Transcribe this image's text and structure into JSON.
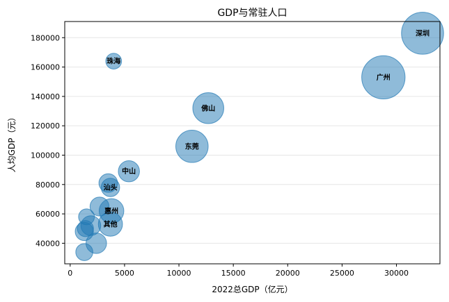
{
  "chart_data": {
    "type": "scatter",
    "title": "GDP与常驻人口",
    "xlabel": "2022总GDP（亿元）",
    "ylabel": "人均GDP（元）",
    "xlim": [
      -500,
      34000
    ],
    "ylim": [
      26000,
      191000
    ],
    "xticks": [
      0,
      5000,
      10000,
      15000,
      20000,
      25000,
      30000
    ],
    "yticks": [
      40000,
      60000,
      80000,
      100000,
      120000,
      140000,
      160000,
      180000
    ],
    "grid": "horizontal",
    "bubble_color": "#1f77b4",
    "bubble_size_meaning": "常驻人口",
    "points": [
      {
        "label": "深圳",
        "x": 32400,
        "y": 183000,
        "size": 1766
      },
      {
        "label": "广州",
        "x": 28800,
        "y": 153000,
        "size": 1873
      },
      {
        "label": "佛山",
        "x": 12700,
        "y": 132000,
        "size": 955
      },
      {
        "label": "东莞",
        "x": 11200,
        "y": 106000,
        "size": 1044
      },
      {
        "label": "珠海",
        "x": 4000,
        "y": 164000,
        "size": 248
      },
      {
        "label": "中山",
        "x": 5400,
        "y": 89000,
        "size": 445
      },
      {
        "label": "汕头",
        "x": 3700,
        "y": 78000,
        "size": 340
      },
      {
        "label": "惠州",
        "x": 3800,
        "y": 62000,
        "size": 606
      },
      {
        "label": "其他",
        "x": 3700,
        "y": 53000,
        "size": 580
      },
      {
        "label": "",
        "x": 3500,
        "y": 81000,
        "size": 345
      },
      {
        "label": "",
        "x": 2700,
        "y": 65000,
        "size": 360
      },
      {
        "label": "",
        "x": 1500,
        "y": 58000,
        "size": 250
      },
      {
        "label": "",
        "x": 1900,
        "y": 52000,
        "size": 390
      },
      {
        "label": "",
        "x": 2400,
        "y": 40000,
        "size": 420
      },
      {
        "label": "",
        "x": 1300,
        "y": 48000,
        "size": 330
      },
      {
        "label": "",
        "x": 1400,
        "y": 50000,
        "size": 260
      },
      {
        "label": "",
        "x": 1300,
        "y": 34000,
        "size": 290
      }
    ]
  }
}
